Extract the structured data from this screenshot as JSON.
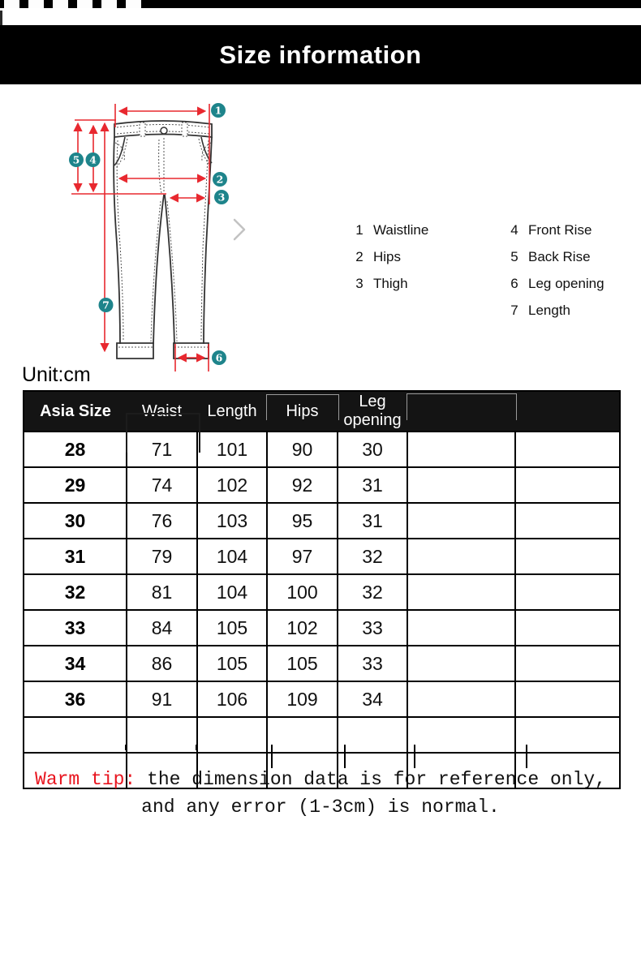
{
  "title_bar": {
    "title": "Size information"
  },
  "diagram": {
    "markers": [
      "1",
      "2",
      "3",
      "4",
      "5",
      "6",
      "7"
    ],
    "legend_left": [
      {
        "num": "1",
        "label": "Waistline"
      },
      {
        "num": "2",
        "label": "Hips"
      },
      {
        "num": "3",
        "label": "Thigh"
      }
    ],
    "legend_right": [
      {
        "num": "4",
        "label": "Front Rise"
      },
      {
        "num": "5",
        "label": "Back Rise"
      },
      {
        "num": "6",
        "label": "Leg opening"
      },
      {
        "num": "7",
        "label": "Length"
      }
    ]
  },
  "unit_label": "Unit:cm",
  "size_table": {
    "headers": [
      "Asia Size",
      "Waist",
      "Length",
      "Hips",
      "Leg opening",
      "",
      ""
    ],
    "rows": [
      [
        "28",
        "71",
        "101",
        "90",
        "30",
        "",
        ""
      ],
      [
        "29",
        "74",
        "102",
        "92",
        "31",
        "",
        ""
      ],
      [
        "30",
        "76",
        "103",
        "95",
        "31",
        "",
        ""
      ],
      [
        "31",
        "79",
        "104",
        "97",
        "32",
        "",
        ""
      ],
      [
        "32",
        "81",
        "104",
        "100",
        "32",
        "",
        ""
      ],
      [
        "33",
        "84",
        "105",
        "102",
        "33",
        "",
        ""
      ],
      [
        "34",
        "86",
        "105",
        "105",
        "33",
        "",
        ""
      ],
      [
        "36",
        "91",
        "106",
        "109",
        "34",
        "",
        ""
      ],
      [
        "",
        "",
        "",
        "",
        "",
        "",
        ""
      ],
      [
        "",
        "",
        "",
        "",
        "",
        "",
        ""
      ]
    ]
  },
  "warm_tip": {
    "prefix": "Warm tip:",
    "line1": "the dimension data is for reference only,",
    "line2": "and any error (1-3cm) is normal."
  },
  "colors": {
    "marker_teal": "#1e848b",
    "arrow_red": "#e8282f",
    "tip_red": "#e8141e"
  }
}
